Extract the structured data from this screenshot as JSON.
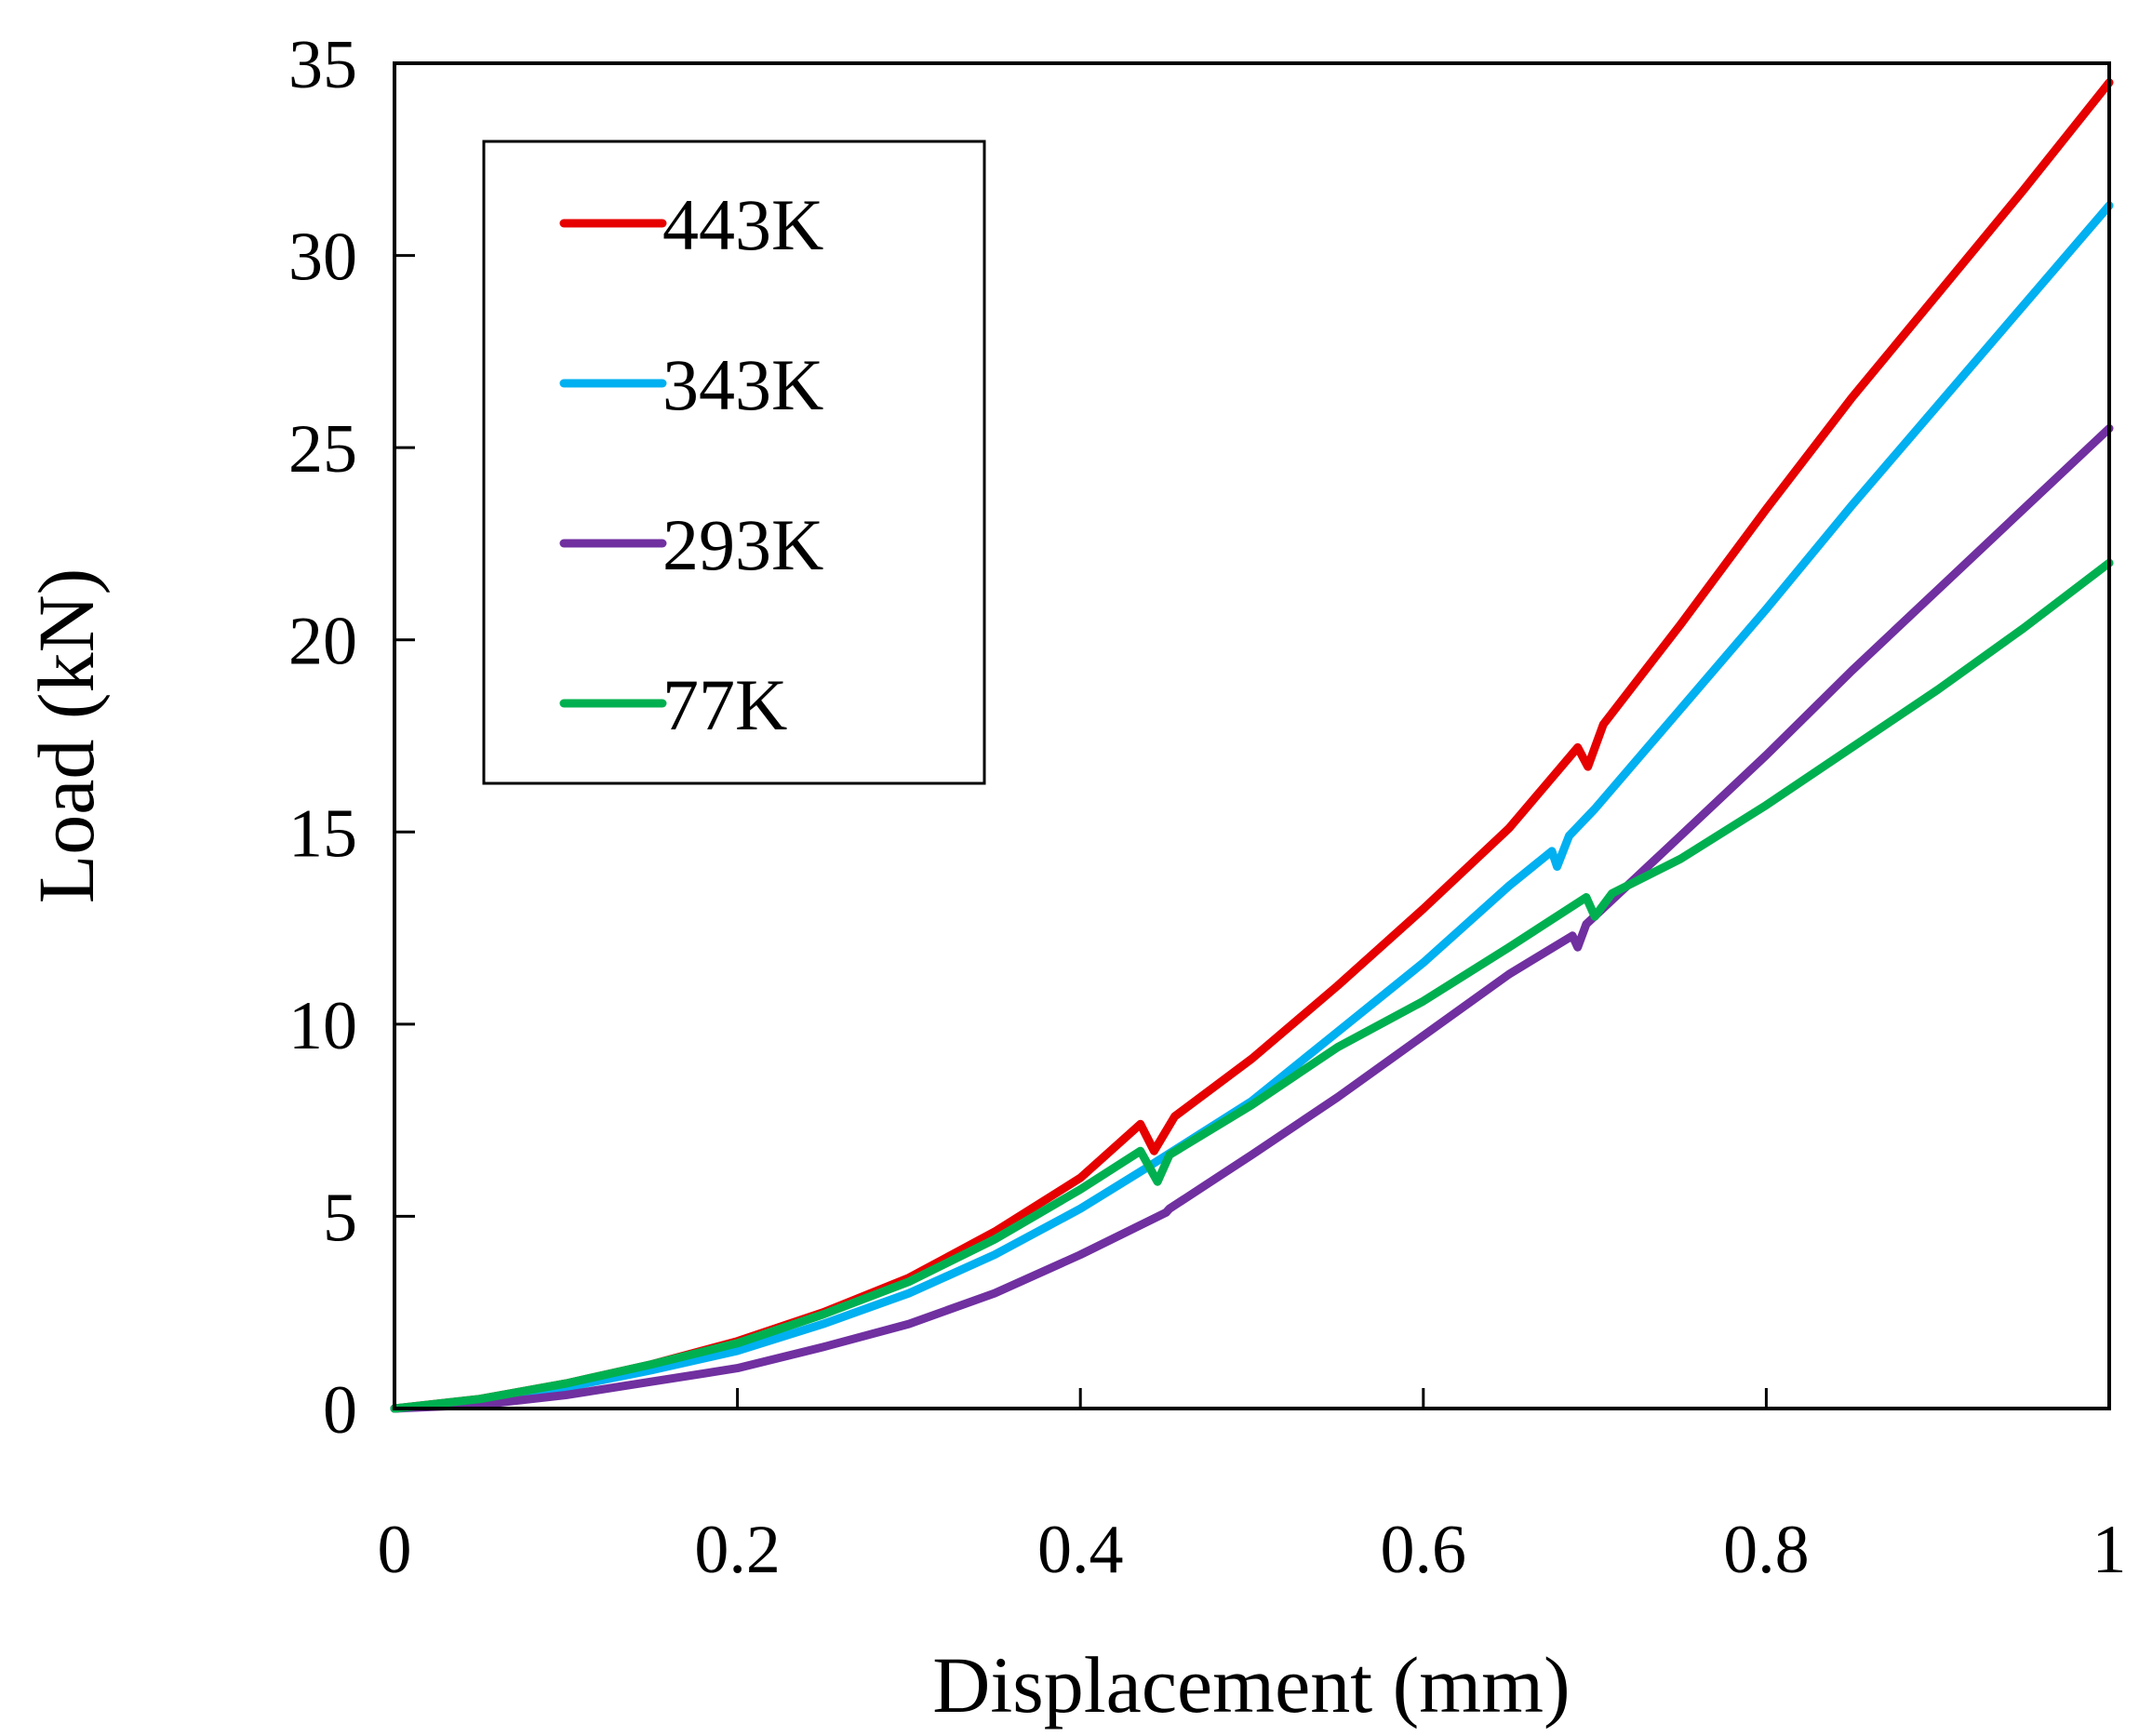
{
  "chart_data": {
    "type": "line",
    "title": "",
    "xlabel": "Displacement (mm)",
    "ylabel": "Load (kN)",
    "xlim": [
      0,
      1
    ],
    "ylim": [
      0,
      35
    ],
    "xticks": [
      0,
      0.2,
      0.4,
      0.6,
      0.8,
      1
    ],
    "xtick_labels": [
      "0",
      "0.2",
      "0.4",
      "0.6",
      "0.8",
      "1"
    ],
    "yticks": [
      0,
      5,
      10,
      15,
      20,
      25,
      30,
      35
    ],
    "ytick_labels": [
      "0",
      "5",
      "10",
      "15",
      "20",
      "25",
      "30",
      "35"
    ],
    "grid": false,
    "legend_position": "top-left",
    "series": [
      {
        "name": "443K",
        "color": "#e60000",
        "points": [
          [
            0,
            0
          ],
          [
            0.05,
            0.25
          ],
          [
            0.1,
            0.65
          ],
          [
            0.15,
            1.15
          ],
          [
            0.2,
            1.75
          ],
          [
            0.25,
            2.5
          ],
          [
            0.3,
            3.4
          ],
          [
            0.35,
            4.6
          ],
          [
            0.4,
            6.0
          ],
          [
            0.435,
            7.4
          ],
          [
            0.443,
            6.7
          ],
          [
            0.455,
            7.6
          ],
          [
            0.5,
            9.1
          ],
          [
            0.55,
            11.0
          ],
          [
            0.6,
            13.0
          ],
          [
            0.65,
            15.1
          ],
          [
            0.69,
            17.2
          ],
          [
            0.696,
            16.7
          ],
          [
            0.705,
            17.8
          ],
          [
            0.75,
            20.4
          ],
          [
            0.8,
            23.4
          ],
          [
            0.85,
            26.3
          ],
          [
            0.9,
            29.0
          ],
          [
            0.95,
            31.7
          ],
          [
            1.0,
            34.5
          ]
        ]
      },
      {
        "name": "343K",
        "color": "#00b0f0",
        "points": [
          [
            0,
            0
          ],
          [
            0.05,
            0.2
          ],
          [
            0.1,
            0.55
          ],
          [
            0.15,
            1.0
          ],
          [
            0.2,
            1.5
          ],
          [
            0.25,
            2.2
          ],
          [
            0.3,
            3.0
          ],
          [
            0.35,
            4.0
          ],
          [
            0.4,
            5.2
          ],
          [
            0.44,
            6.3
          ],
          [
            0.5,
            8.0
          ],
          [
            0.55,
            9.8
          ],
          [
            0.6,
            11.6
          ],
          [
            0.65,
            13.6
          ],
          [
            0.675,
            14.5
          ],
          [
            0.678,
            14.1
          ],
          [
            0.685,
            14.9
          ],
          [
            0.7,
            15.6
          ],
          [
            0.75,
            18.2
          ],
          [
            0.8,
            20.8
          ],
          [
            0.85,
            23.5
          ],
          [
            0.9,
            26.1
          ],
          [
            0.95,
            28.7
          ],
          [
            1.0,
            31.3
          ]
        ]
      },
      {
        "name": "293K",
        "color": "#7030a0",
        "points": [
          [
            0,
            0
          ],
          [
            0.05,
            0.1
          ],
          [
            0.1,
            0.35
          ],
          [
            0.15,
            0.7
          ],
          [
            0.2,
            1.05
          ],
          [
            0.25,
            1.6
          ],
          [
            0.3,
            2.2
          ],
          [
            0.35,
            3.0
          ],
          [
            0.4,
            4.0
          ],
          [
            0.45,
            5.1
          ],
          [
            0.452,
            5.2
          ],
          [
            0.5,
            6.6
          ],
          [
            0.55,
            8.1
          ],
          [
            0.6,
            9.7
          ],
          [
            0.65,
            11.3
          ],
          [
            0.687,
            12.3
          ],
          [
            0.69,
            12.0
          ],
          [
            0.695,
            12.6
          ],
          [
            0.75,
            14.9
          ],
          [
            0.8,
            17.0
          ],
          [
            0.85,
            19.2
          ],
          [
            0.9,
            21.3
          ],
          [
            0.95,
            23.4
          ],
          [
            1.0,
            25.5
          ]
        ]
      },
      {
        "name": "77K",
        "color": "#00b050",
        "points": [
          [
            0,
            0
          ],
          [
            0.05,
            0.25
          ],
          [
            0.1,
            0.65
          ],
          [
            0.15,
            1.15
          ],
          [
            0.2,
            1.7
          ],
          [
            0.25,
            2.45
          ],
          [
            0.3,
            3.3
          ],
          [
            0.35,
            4.4
          ],
          [
            0.4,
            5.7
          ],
          [
            0.435,
            6.7
          ],
          [
            0.445,
            5.9
          ],
          [
            0.452,
            6.6
          ],
          [
            0.5,
            7.9
          ],
          [
            0.55,
            9.4
          ],
          [
            0.6,
            10.6
          ],
          [
            0.65,
            12.0
          ],
          [
            0.695,
            13.3
          ],
          [
            0.7,
            12.8
          ],
          [
            0.71,
            13.4
          ],
          [
            0.75,
            14.3
          ],
          [
            0.8,
            15.7
          ],
          [
            0.85,
            17.2
          ],
          [
            0.9,
            18.7
          ],
          [
            0.95,
            20.3
          ],
          [
            1.0,
            22.0
          ]
        ]
      }
    ]
  }
}
